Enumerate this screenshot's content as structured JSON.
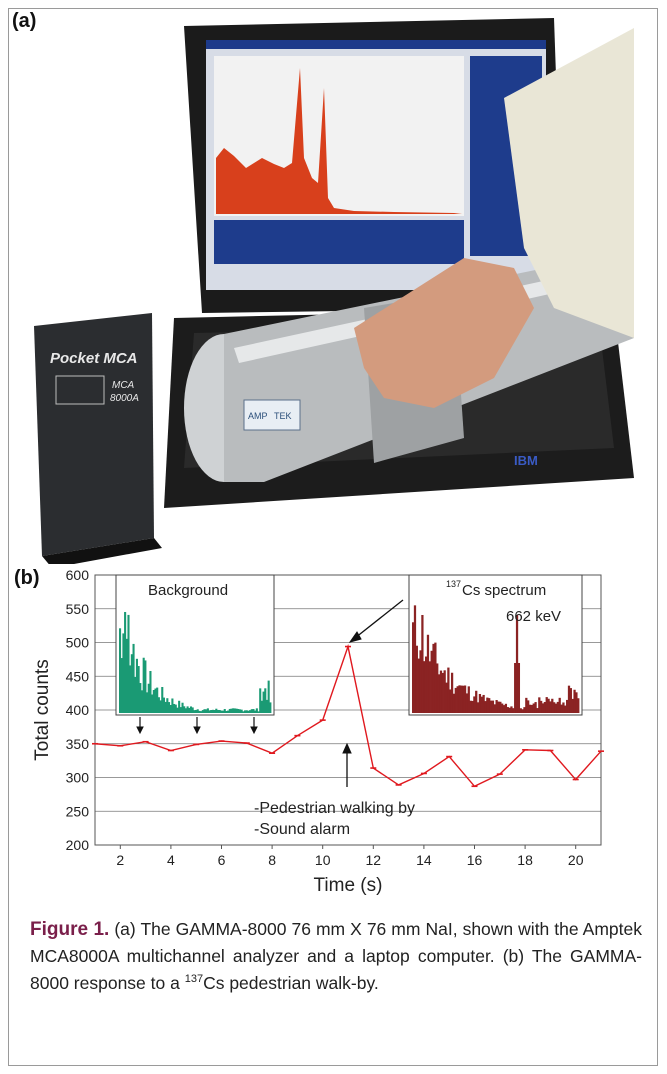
{
  "panels": {
    "a_label": "(a)",
    "b_label": "(b)"
  },
  "photo": {
    "device_text_1": "Pocket MCA",
    "device_text_2": "MCA",
    "device_text_3": "8000A",
    "logo_left": "AMP",
    "logo_right": "TEK",
    "laptop_brand": "IBM"
  },
  "chart_data": {
    "type": "line",
    "xlabel": "Time (s)",
    "ylabel": "Total counts",
    "xlim": [
      1,
      21
    ],
    "ylim": [
      200,
      600
    ],
    "xticks": [
      2,
      4,
      6,
      8,
      10,
      12,
      14,
      16,
      18,
      20
    ],
    "yticks": [
      200,
      250,
      300,
      350,
      400,
      450,
      500,
      550,
      600
    ],
    "grid": "horizontal",
    "series": [
      {
        "color": "#e0191f",
        "x": [
          1,
          2,
          3,
          4,
          5,
          6,
          7,
          8,
          9,
          10,
          11,
          12,
          13,
          14,
          15,
          16,
          17,
          18,
          19,
          20,
          21
        ],
        "y": [
          350,
          347,
          353,
          340,
          349,
          354,
          351,
          336,
          362,
          385,
          494,
          314,
          289,
          306,
          331,
          287,
          305,
          341,
          340,
          297,
          339
        ]
      }
    ],
    "baseline": 350,
    "annotations": {
      "background_label": "Background",
      "cs_label_sup": "137",
      "cs_label_main": "Cs spectrum",
      "energy_label": "662 keV",
      "event_line1": "-Pedestrian walking by",
      "event_line2": "-Sound alarm"
    },
    "inset_colors": {
      "background": "#1a9a74",
      "cs": "#8b2323"
    }
  },
  "caption": {
    "figure_label": "Figure 1.",
    "part_a": " (a) The GAMMA-8000 76 mm X 76 mm NaI, shown with the Amptek MCA8000A multichannel analyzer and a laptop computer.",
    "part_b_prefix": " (b) The GAMMA-8000 response to a ",
    "part_b_sup": "137",
    "part_b_suffix": "Cs pedestrian walk-by."
  },
  "colors": {
    "figure_label": "#7a1f4a",
    "line": "#e0191f",
    "frame": "#9a9a9a"
  }
}
